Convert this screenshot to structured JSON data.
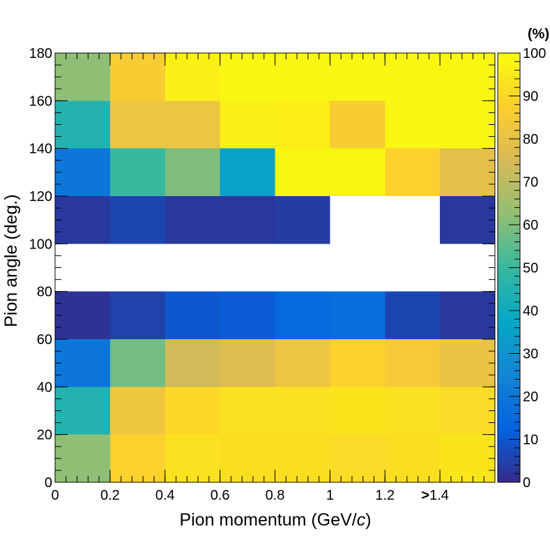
{
  "chart_data": {
    "type": "heatmap",
    "title": "",
    "xlabel": "Pion momentum (GeV/",
    "xlabel_italic": "c",
    "xlabel_suffix": ")",
    "ylabel": "Pion angle (deg.)",
    "xlim": [
      0,
      1.6
    ],
    "ylim": [
      0,
      180
    ],
    "x_edges": [
      0,
      0.2,
      0.4,
      0.6,
      0.8,
      1.0,
      1.2,
      1.4,
      1.6
    ],
    "y_edges": [
      0,
      20,
      40,
      60,
      80,
      100,
      120,
      140,
      160,
      180
    ],
    "x_ticks": [
      {
        "value": 0,
        "label": "0"
      },
      {
        "value": 0.2,
        "label": "0.2"
      },
      {
        "value": 0.4,
        "label": "0.4"
      },
      {
        "value": 0.6,
        "label": "0.6"
      },
      {
        "value": 0.8,
        "label": "0.8"
      },
      {
        "value": 1.0,
        "label": "1"
      },
      {
        "value": 1.2,
        "label": "1.2"
      },
      {
        "value": 1.4,
        "label_prefix": ">",
        "label": "1.4"
      }
    ],
    "y_ticks": [
      {
        "value": 0,
        "label": "0"
      },
      {
        "value": 20,
        "label": "20"
      },
      {
        "value": 40,
        "label": "40"
      },
      {
        "value": 60,
        "label": "60"
      },
      {
        "value": 80,
        "label": "80"
      },
      {
        "value": 100,
        "label": "100"
      },
      {
        "value": 120,
        "label": "120"
      },
      {
        "value": 140,
        "label": "140"
      },
      {
        "value": 160,
        "label": "160"
      },
      {
        "value": 180,
        "label": "180"
      }
    ],
    "z_range": [
      0,
      100
    ],
    "colorbar_unit": "(%)",
    "colorbar_ticks": [
      {
        "value": 0,
        "label": "0"
      },
      {
        "value": 10,
        "label": "10"
      },
      {
        "value": 20,
        "label": "20"
      },
      {
        "value": 30,
        "label": "30"
      },
      {
        "value": 40,
        "label": "40"
      },
      {
        "value": 50,
        "label": "50"
      },
      {
        "value": 60,
        "label": "60"
      },
      {
        "value": 70,
        "label": "70"
      },
      {
        "value": 80,
        "label": "80"
      },
      {
        "value": 90,
        "label": "90"
      },
      {
        "value": 100,
        "label": "100"
      }
    ],
    "values": [
      [
        62,
        88,
        93,
        92,
        92,
        91,
        92,
        94
      ],
      [
        45,
        83,
        90,
        93,
        93,
        94,
        93,
        91
      ],
      [
        20,
        58,
        74,
        77,
        82,
        88,
        85,
        81
      ],
      [
        2,
        5,
        10,
        11,
        15,
        16,
        6,
        3
      ],
      [
        null,
        null,
        null,
        null,
        null,
        null,
        null,
        null
      ],
      [
        3,
        6,
        3,
        3,
        4,
        null,
        null,
        3
      ],
      [
        20,
        50,
        60,
        35,
        99,
        99,
        88,
        79
      ],
      [
        45,
        82,
        82,
        97,
        96,
        86,
        99,
        99
      ],
      [
        62,
        86,
        97,
        99,
        99,
        99,
        99,
        99
      ]
    ],
    "colormap_stops": [
      "#352a87",
      "#0363e1",
      "#1485d4",
      "#06a7c6",
      "#38b99e",
      "#92bf73",
      "#d9ba56",
      "#fcce2e",
      "#f9fb0e"
    ]
  }
}
